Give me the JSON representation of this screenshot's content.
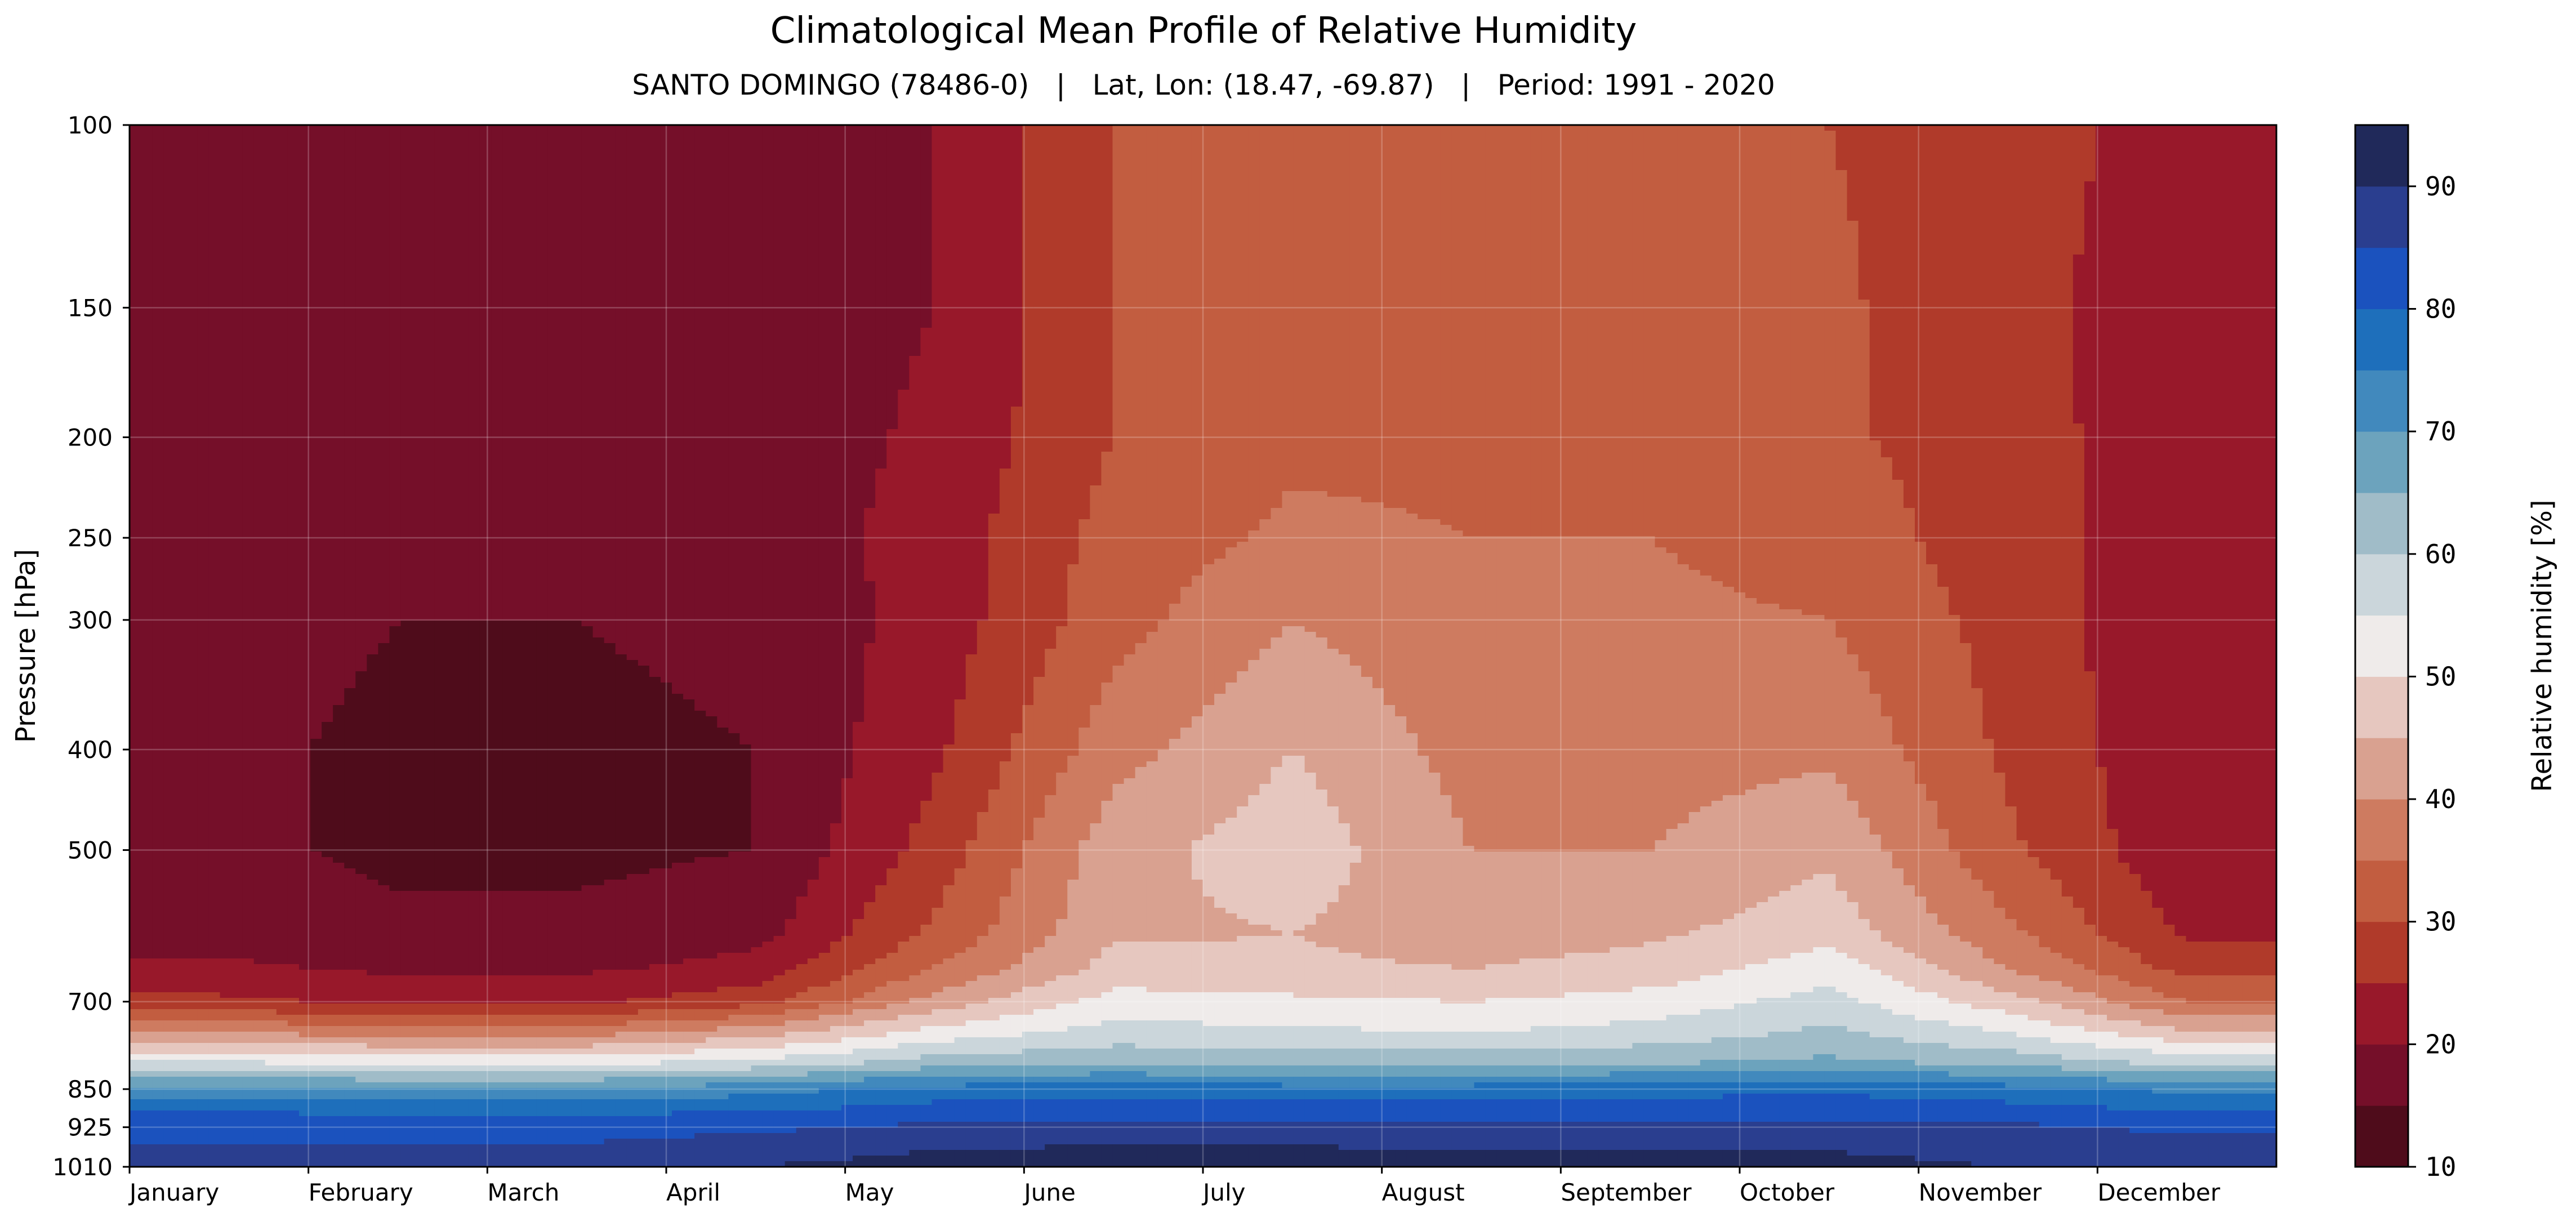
{
  "chart_data": {
    "type": "heatmap",
    "title": "Climatological Mean Profile of Relative Humidity",
    "subtitle": "SANTO DOMINGO (78486-0)   |   Lat, Lon: (18.47, -69.87)   |   Period: 1991 - 2020",
    "xlabel": "",
    "ylabel": "Pressure [hPa]",
    "colorbar_label": "Relative humidity [%]",
    "x_ticks": [
      "January",
      "February",
      "March",
      "April",
      "May",
      "June",
      "July",
      "August",
      "September",
      "October",
      "November",
      "December"
    ],
    "y_ticks": [
      100,
      150,
      200,
      250,
      300,
      400,
      500,
      700,
      850,
      925,
      1010
    ],
    "y_scale": "log",
    "ylim": [
      1010,
      100
    ],
    "colorbar": {
      "min": 10,
      "max": 95,
      "step": 5,
      "ticks": [
        10,
        20,
        30,
        40,
        50,
        60,
        70,
        80,
        90
      ],
      "colors": [
        "#4f0c1b",
        "#750f29",
        "#98182a",
        "#b03a2a",
        "#c25d40",
        "#ce7b60",
        "#d9a190",
        "#e6c7bf",
        "#efebea",
        "#cbd6db",
        "#a0bcc8",
        "#6ca3bd",
        "#4189bd",
        "#1e6fbb",
        "#1b52be",
        "#2a3e8f",
        "#20295a"
      ]
    },
    "levels": [
      100,
      150,
      200,
      250,
      300,
      400,
      500,
      600,
      650,
      700,
      750,
      800,
      850,
      900,
      925,
      975,
      1010
    ],
    "field": [
      [
        16,
        17,
        17,
        16,
        20,
        30,
        33,
        32,
        31,
        30,
        27,
        23,
        17
      ],
      [
        18,
        17,
        17,
        17,
        20,
        30,
        34,
        33,
        32,
        31,
        26,
        23,
        19
      ],
      [
        18,
        17,
        17,
        17,
        21,
        30,
        34,
        34,
        33,
        31,
        27,
        22,
        19
      ],
      [
        18,
        16,
        16,
        17,
        22,
        32,
        36,
        35,
        35,
        33,
        27,
        22,
        18
      ],
      [
        17,
        15,
        15,
        16,
        22,
        33,
        40,
        36,
        36,
        35,
        28,
        21,
        17
      ],
      [
        16,
        14,
        14,
        15,
        24,
        38,
        45,
        38,
        38,
        39,
        29,
        21,
        16
      ],
      [
        16,
        14,
        14,
        15,
        27,
        43,
        48,
        40,
        40,
        44,
        31,
        21,
        16
      ],
      [
        18,
        16,
        16,
        18,
        31,
        44,
        45,
        42,
        44,
        48,
        36,
        24,
        18
      ],
      [
        21,
        19,
        19,
        22,
        35,
        47,
        46,
        45,
        47,
        53,
        40,
        28,
        21
      ],
      [
        26,
        24,
        24,
        28,
        42,
        52,
        51,
        50,
        52,
        57,
        47,
        35,
        26
      ],
      [
        40,
        38,
        38,
        43,
        52,
        57,
        56,
        55,
        57,
        61,
        55,
        46,
        40
      ],
      [
        55,
        53,
        53,
        56,
        62,
        64,
        63,
        63,
        64,
        66,
        63,
        58,
        55
      ],
      [
        72,
        71,
        71,
        73,
        77,
        78,
        77,
        77,
        78,
        79,
        77,
        74,
        72
      ],
      [
        81,
        80,
        80,
        81,
        83,
        84,
        83,
        83,
        84,
        84,
        83,
        81,
        81
      ],
      [
        83,
        83,
        83,
        84,
        86,
        87,
        86,
        86,
        87,
        87,
        86,
        84,
        83
      ],
      [
        86,
        86,
        86,
        88,
        90,
        91,
        91,
        90,
        90,
        90,
        89,
        87,
        86
      ],
      [
        89,
        88,
        88,
        90,
        92,
        93,
        92,
        92,
        91,
        91,
        90,
        89,
        89
      ]
    ]
  }
}
